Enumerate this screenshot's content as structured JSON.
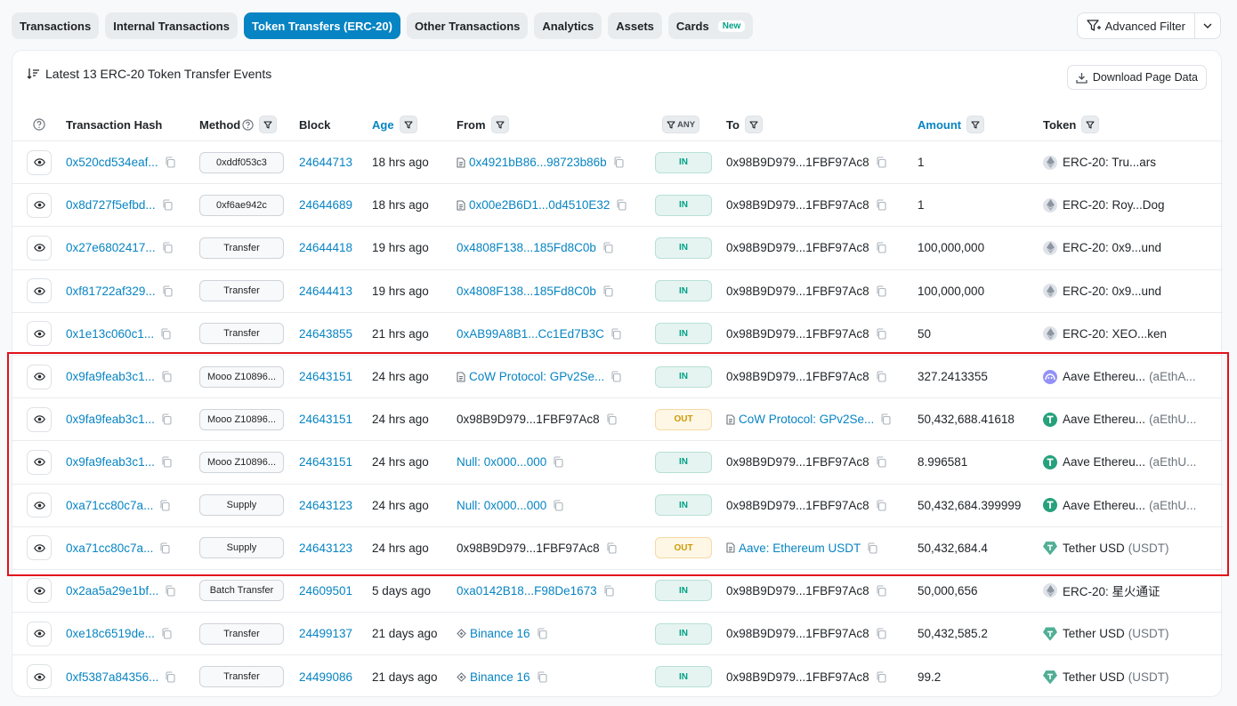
{
  "tabs": [
    {
      "label": "Transactions",
      "active": false
    },
    {
      "label": "Internal Transactions",
      "active": false
    },
    {
      "label": "Token Transfers (ERC-20)",
      "active": true
    },
    {
      "label": "Other Transactions",
      "active": false
    },
    {
      "label": "Analytics",
      "active": false
    },
    {
      "label": "Assets",
      "active": false
    },
    {
      "label": "Cards",
      "active": false,
      "badge": "New"
    }
  ],
  "advanced_filter": {
    "label": "Advanced Filter"
  },
  "card": {
    "title": "Latest 13 ERC-20 Token Transfer Events",
    "download_label": "Download Page Data"
  },
  "columns": {
    "hash": "Transaction Hash",
    "method": "Method",
    "block": "Block",
    "age": "Age",
    "from": "From",
    "any": "ANY",
    "to": "To",
    "amount": "Amount",
    "token": "Token"
  },
  "rows": [
    {
      "hash": "0x520cd534eaf...",
      "method": "0xddf053c3",
      "block": "24644713",
      "age": "18 hrs ago",
      "from": "0x4921bB86...98723b86b",
      "from_link": true,
      "from_icon": "doc",
      "dir": "IN",
      "to": "0x98B9D979...1FBF97Ac8",
      "to_link": false,
      "to_icon": "",
      "amount": "1",
      "token": "ERC-20: Tru...ars",
      "token_sym": "",
      "token_icon": "eth"
    },
    {
      "hash": "0x8d727f5efbd...",
      "method": "0xf6ae942c",
      "block": "24644689",
      "age": "18 hrs ago",
      "from": "0x00e2B6D1...0d4510E32",
      "from_link": true,
      "from_icon": "doc",
      "dir": "IN",
      "to": "0x98B9D979...1FBF97Ac8",
      "to_link": false,
      "to_icon": "",
      "amount": "1",
      "token": "ERC-20: Roy...Dog",
      "token_sym": "",
      "token_icon": "eth"
    },
    {
      "hash": "0x27e6802417...",
      "method": "Transfer",
      "block": "24644418",
      "age": "19 hrs ago",
      "from": "0x4808F138...185Fd8C0b",
      "from_link": true,
      "from_icon": "",
      "dir": "IN",
      "to": "0x98B9D979...1FBF97Ac8",
      "to_link": false,
      "to_icon": "",
      "amount": "100,000,000",
      "token": "ERC-20: 0x9...und",
      "token_sym": "",
      "token_icon": "eth"
    },
    {
      "hash": "0xf81722af329...",
      "method": "Transfer",
      "block": "24644413",
      "age": "19 hrs ago",
      "from": "0x4808F138...185Fd8C0b",
      "from_link": true,
      "from_icon": "",
      "dir": "IN",
      "to": "0x98B9D979...1FBF97Ac8",
      "to_link": false,
      "to_icon": "",
      "amount": "100,000,000",
      "token": "ERC-20: 0x9...und",
      "token_sym": "",
      "token_icon": "eth"
    },
    {
      "hash": "0x1e13c060c1...",
      "method": "Transfer",
      "block": "24643855",
      "age": "21 hrs ago",
      "from": "0xAB99A8B1...Cc1Ed7B3C",
      "from_link": true,
      "from_icon": "",
      "dir": "IN",
      "to": "0x98B9D979...1FBF97Ac8",
      "to_link": false,
      "to_icon": "",
      "amount": "50",
      "token": "ERC-20: XEO...ken",
      "token_sym": "",
      "token_icon": "eth"
    },
    {
      "hash": "0x9fa9feab3c1...",
      "method": "Mooo Z10896...",
      "block": "24643151",
      "age": "24 hrs ago",
      "from": "CoW Protocol: GPv2Se...",
      "from_link": true,
      "from_icon": "doc",
      "dir": "IN",
      "to": "0x98B9D979...1FBF97Ac8",
      "to_link": false,
      "to_icon": "",
      "amount": "327.2413355",
      "token": "Aave Ethereu...",
      "token_sym": "(aEthA...",
      "token_icon": "aave"
    },
    {
      "hash": "0x9fa9feab3c1...",
      "method": "Mooo Z10896...",
      "block": "24643151",
      "age": "24 hrs ago",
      "from": "0x98B9D979...1FBF97Ac8",
      "from_link": false,
      "from_icon": "",
      "dir": "OUT",
      "to": "CoW Protocol: GPv2Se...",
      "to_link": true,
      "to_icon": "doc",
      "amount": "50,432,688.41618",
      "token": "Aave Ethereu...",
      "token_sym": "(aEthU...",
      "token_icon": "usdt"
    },
    {
      "hash": "0x9fa9feab3c1...",
      "method": "Mooo Z10896...",
      "block": "24643151",
      "age": "24 hrs ago",
      "from": "Null: 0x000...000",
      "from_link": true,
      "from_icon": "",
      "dir": "IN",
      "to": "0x98B9D979...1FBF97Ac8",
      "to_link": false,
      "to_icon": "",
      "amount": "8.996581",
      "token": "Aave Ethereu...",
      "token_sym": "(aEthU...",
      "token_icon": "usdt"
    },
    {
      "hash": "0xa71cc80c7a...",
      "method": "Supply",
      "block": "24643123",
      "age": "24 hrs ago",
      "from": "Null: 0x000...000",
      "from_link": true,
      "from_icon": "",
      "dir": "IN",
      "to": "0x98B9D979...1FBF97Ac8",
      "to_link": false,
      "to_icon": "",
      "amount": "50,432,684.399999",
      "token": "Aave Ethereu...",
      "token_sym": "(aEthU...",
      "token_icon": "usdt"
    },
    {
      "hash": "0xa71cc80c7a...",
      "method": "Supply",
      "block": "24643123",
      "age": "24 hrs ago",
      "from": "0x98B9D979...1FBF97Ac8",
      "from_link": false,
      "from_icon": "",
      "dir": "OUT",
      "to": "Aave: Ethereum USDT",
      "to_link": true,
      "to_icon": "doc",
      "amount": "50,432,684.4",
      "token": "Tether USD",
      "token_sym": "(USDT)",
      "token_icon": "tether"
    },
    {
      "hash": "0x2aa5a29e1bf...",
      "method": "Batch Transfer",
      "block": "24609501",
      "age": "5 days ago",
      "from": "0xa0142B18...F98De1673",
      "from_link": true,
      "from_icon": "",
      "dir": "IN",
      "to": "0x98B9D979...1FBF97Ac8",
      "to_link": false,
      "to_icon": "",
      "amount": "50,000,656",
      "token": "ERC-20: 星火通证",
      "token_sym": "",
      "token_icon": "eth"
    },
    {
      "hash": "0xe18c6519de...",
      "method": "Transfer",
      "block": "24499137",
      "age": "21 days ago",
      "from": "Binance 16",
      "from_link": true,
      "from_icon": "exchange",
      "dir": "IN",
      "to": "0x98B9D979...1FBF97Ac8",
      "to_link": false,
      "to_icon": "",
      "amount": "50,432,585.2",
      "token": "Tether USD",
      "token_sym": "(USDT)",
      "token_icon": "tether"
    },
    {
      "hash": "0xf5387a84356...",
      "method": "Transfer",
      "block": "24499086",
      "age": "21 days ago",
      "from": "Binance 16",
      "from_link": true,
      "from_icon": "exchange",
      "dir": "IN",
      "to": "0x98B9D979...1FBF97Ac8",
      "to_link": false,
      "to_icon": "",
      "amount": "99.2",
      "token": "Tether USD",
      "token_sym": "(USDT)",
      "token_icon": "tether"
    }
  ],
  "colors": {
    "accent": "#0784c3",
    "in_badge": "#00a186",
    "out_badge": "#cc9a06",
    "highlight_border": "#e2111b",
    "tether": "#50af95",
    "aave": "#9391f7"
  },
  "icons": {
    "eye": "eye-icon",
    "copy": "copy-icon",
    "filter": "filter-icon",
    "question": "question-circle-icon",
    "document": "document-icon",
    "download": "download-icon",
    "sort": "sort-desc-icon"
  }
}
